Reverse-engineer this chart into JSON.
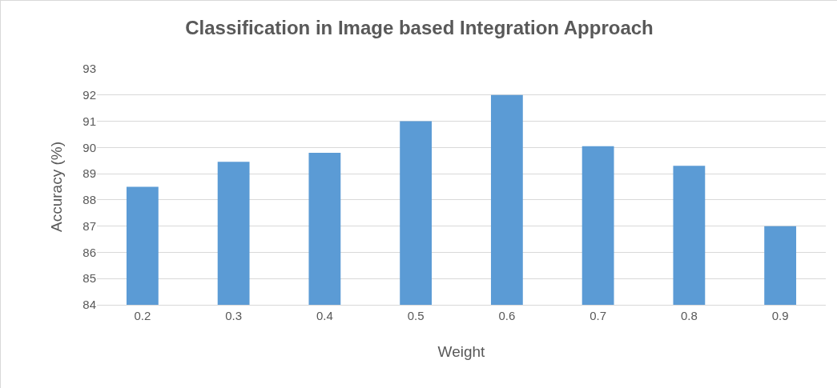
{
  "chart_data": {
    "type": "bar",
    "title": "Classification in Image based Integration Approach",
    "xlabel": "Weight",
    "ylabel": "Accuracy (%)",
    "categories": [
      "0.2",
      "0.3",
      "0.4",
      "0.5",
      "0.6",
      "0.7",
      "0.8",
      "0.9"
    ],
    "values": [
      88.5,
      89.45,
      89.8,
      91,
      92,
      90.05,
      89.3,
      87
    ],
    "color": "#5b9bd5",
    "ylim": [
      84,
      93
    ],
    "yticks": [
      84,
      85,
      86,
      87,
      88,
      89,
      90,
      91,
      92,
      93
    ],
    "grid": "y"
  }
}
